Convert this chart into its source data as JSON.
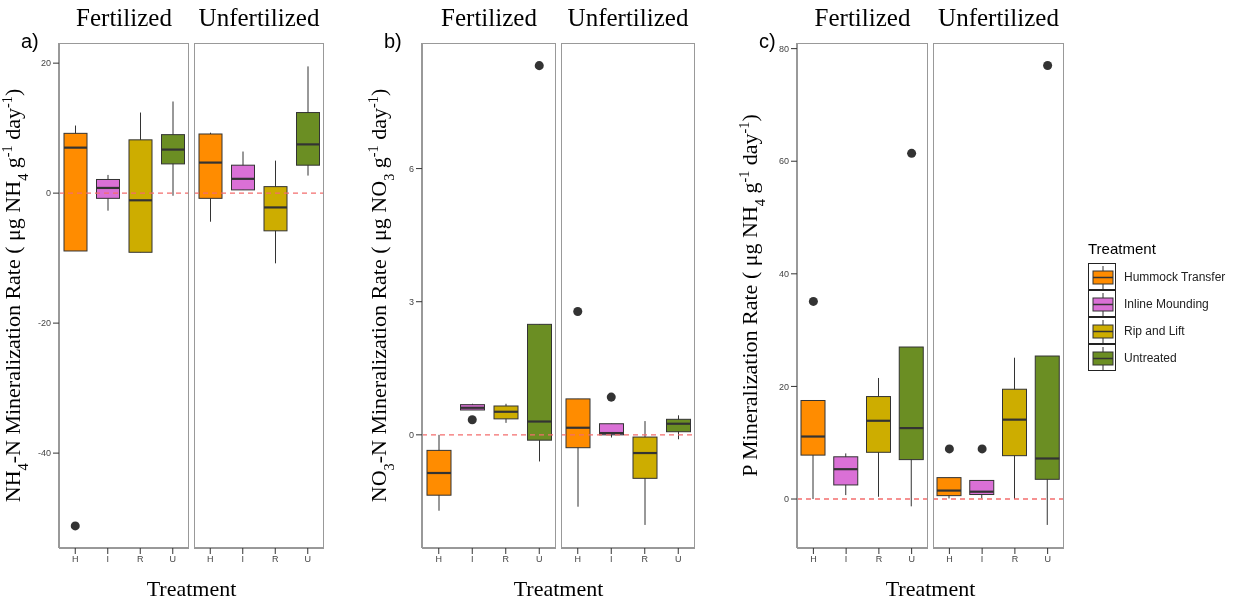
{
  "chart_data": [
    {
      "type": "box",
      "title": "Fertilized",
      "ylabel": "NH$_{4}$-N Mineralization Rate ( μg NH$_{4}$ g$^{-1}$ day$^{-1}$)",
      "xlabel": "Treatment",
      "annotations": [
        "a)"
      ],
      "categories": [
        "H",
        "I",
        "R",
        "U"
      ],
      "ylim": [
        -54.6,
        23.1
      ],
      "yticks": [
        -40,
        -20,
        0,
        20
      ],
      "ref_lines": [
        {
          "axis": "y",
          "value": 0,
          "color": "#f46d6d",
          "line_style": "dashed"
        }
      ],
      "series": [
        {
          "color": "#ff8c00",
          "boxes": [
            {
              "low": -8.9,
              "q1": -8.9,
              "median": 7.0,
              "q3": 9.2,
              "high": 10.4,
              "outliers": [
                -51.2
              ]
            },
            null,
            null,
            null
          ]
        },
        {
          "color": "#da70d6",
          "boxes": [
            null,
            {
              "low": -2.7,
              "q1": -0.8,
              "median": 0.8,
              "q3": 2.1,
              "high": 2.8
            },
            null,
            null
          ]
        },
        {
          "color": "#cdad00",
          "boxes": [
            null,
            null,
            {
              "low": -9.1,
              "q1": -9.1,
              "median": -1.1,
              "q3": 8.2,
              "high": 12.4
            },
            null
          ]
        },
        {
          "color": "#6b8e23",
          "boxes": [
            null,
            null,
            null,
            {
              "low": -0.4,
              "q1": 4.5,
              "median": 6.7,
              "q3": 9.0,
              "high": 14.1
            }
          ]
        }
      ]
    },
    {
      "type": "box",
      "title": "Unfertilized",
      "tick_labels": "x",
      "categories": [
        "H",
        "I",
        "R",
        "U"
      ],
      "ylim": [
        -54.6,
        23.1
      ],
      "yticks": [
        -40,
        -20,
        0,
        20
      ],
      "ref_lines": [
        {
          "axis": "y",
          "value": 0,
          "color": "#f46d6d",
          "line_style": "dashed"
        }
      ],
      "series": [
        {
          "color": "#ff8c00",
          "boxes": [
            {
              "low": -4.4,
              "q1": -0.8,
              "median": 4.7,
              "q3": 9.1,
              "high": 9.3
            },
            null,
            null,
            null
          ]
        },
        {
          "color": "#da70d6",
          "boxes": [
            null,
            {
              "low": 0.5,
              "q1": 0.5,
              "median": 2.2,
              "q3": 4.3,
              "high": 6.4
            },
            null,
            null
          ]
        },
        {
          "color": "#cdad00",
          "boxes": [
            null,
            null,
            {
              "low": -10.8,
              "q1": -5.8,
              "median": -2.2,
              "q3": 1.0,
              "high": 5.0
            },
            null
          ]
        },
        {
          "color": "#6b8e23",
          "boxes": [
            null,
            null,
            null,
            {
              "low": 2.7,
              "q1": 4.3,
              "median": 7.5,
              "q3": 12.4,
              "high": 19.5
            }
          ]
        }
      ]
    },
    {
      "type": "box",
      "title": "Fertilized",
      "ylabel": "NO$_{3}$-N Mineralization Rate ( μg NO$_{3}$ g$^{-1}$ day$^{-1}$)",
      "xlabel": "Treatment",
      "annotations": [
        "b)"
      ],
      "categories": [
        "H",
        "I",
        "R",
        "U"
      ],
      "ylim": [
        -2.55,
        8.83
      ],
      "yticks": [
        0,
        3,
        6
      ],
      "ref_lines": [
        {
          "axis": "y",
          "value": 0,
          "color": "#f46d6d",
          "line_style": "dashed"
        }
      ],
      "series": [
        {
          "color": "#ff8c00",
          "boxes": [
            {
              "low": -1.71,
              "q1": -1.36,
              "median": -0.86,
              "q3": -0.35,
              "high": 0
            },
            null,
            null,
            null
          ]
        },
        {
          "color": "#da70d6",
          "boxes": [
            null,
            {
              "low": 0.56,
              "q1": 0.56,
              "median": 0.61,
              "q3": 0.68,
              "high": 0.7,
              "outliers": [
                0.34
              ]
            },
            null,
            null
          ]
        },
        {
          "color": "#cdad00",
          "boxes": [
            null,
            null,
            {
              "low": 0.27,
              "q1": 0.36,
              "median": 0.52,
              "q3": 0.65,
              "high": 0.7
            },
            null
          ]
        },
        {
          "color": "#6b8e23",
          "boxes": [
            null,
            null,
            null,
            {
              "low": -0.6,
              "q1": -0.12,
              "median": 0.3,
              "q3": 2.49,
              "high": 2.49,
              "outliers": [
                8.32
              ]
            }
          ]
        }
      ]
    },
    {
      "type": "box",
      "title": "Unfertilized",
      "tick_labels": "x",
      "categories": [
        "H",
        "I",
        "R",
        "U"
      ],
      "ylim": [
        -2.55,
        8.83
      ],
      "yticks": [
        0,
        3,
        6
      ],
      "ref_lines": [
        {
          "axis": "y",
          "value": 0,
          "color": "#f46d6d",
          "line_style": "dashed"
        }
      ],
      "series": [
        {
          "color": "#ff8c00",
          "boxes": [
            {
              "low": -1.62,
              "q1": -0.29,
              "median": 0.16,
              "q3": 0.81,
              "high": 0.81,
              "outliers": [
                2.78
              ]
            },
            null,
            null,
            null
          ]
        },
        {
          "color": "#da70d6",
          "boxes": [
            null,
            {
              "low": -0.06,
              "q1": 0,
              "median": 0.04,
              "q3": 0.25,
              "high": 0.25,
              "outliers": [
                0.85
              ]
            },
            null,
            null
          ]
        },
        {
          "color": "#cdad00",
          "boxes": [
            null,
            null,
            {
              "low": -2.03,
              "q1": -0.98,
              "median": -0.41,
              "q3": -0.05,
              "high": 0.31
            },
            null
          ]
        },
        {
          "color": "#6b8e23",
          "boxes": [
            null,
            null,
            null,
            {
              "low": -0.1,
              "q1": 0.07,
              "median": 0.25,
              "q3": 0.35,
              "high": 0.44
            }
          ]
        }
      ]
    },
    {
      "type": "box",
      "title": "Fertilized",
      "ylabel": "P Mineralization Rate ( μg NH$_{4}$ g$^{-1}$ day$^{-1}$)",
      "xlabel": "Treatment",
      "annotations": [
        "c)"
      ],
      "categories": [
        "H",
        "I",
        "R",
        "U"
      ],
      "ylim": [
        -8.7,
        81
      ],
      "yticks": [
        0,
        20,
        40,
        60,
        80
      ],
      "ref_lines": [
        {
          "axis": "y",
          "value": 0,
          "color": "#f46d6d",
          "line_style": "dashed"
        }
      ],
      "series": [
        {
          "color": "#ff8c00",
          "boxes": [
            {
              "low": 0,
              "q1": 7.8,
              "median": 11.1,
              "q3": 17.5,
              "high": 17.5,
              "outliers": [
                35.1
              ]
            },
            null,
            null,
            null
          ]
        },
        {
          "color": "#da70d6",
          "boxes": [
            null,
            {
              "low": 0.7,
              "q1": 2.5,
              "median": 5.3,
              "q3": 7.5,
              "high": 8.1
            },
            null,
            null
          ]
        },
        {
          "color": "#cdad00",
          "boxes": [
            null,
            null,
            {
              "low": 0.4,
              "q1": 8.3,
              "median": 13.9,
              "q3": 18.2,
              "high": 21.5
            },
            null
          ]
        },
        {
          "color": "#6b8e23",
          "boxes": [
            null,
            null,
            null,
            {
              "low": -1.3,
              "q1": 7.0,
              "median": 12.6,
              "q3": 27.0,
              "high": 27.0,
              "outliers": [
                61.4
              ]
            }
          ]
        }
      ]
    },
    {
      "type": "box",
      "title": "Unfertilized",
      "tick_labels": "x",
      "legend": "right",
      "legend_title": "Treatment",
      "categories": [
        "H",
        "I",
        "R",
        "U"
      ],
      "ylim": [
        -8.7,
        81
      ],
      "yticks": [
        0,
        20,
        40,
        60,
        80
      ],
      "ref_lines": [
        {
          "axis": "y",
          "value": 0,
          "color": "#f46d6d",
          "line_style": "dashed"
        }
      ],
      "series": [
        {
          "name": "Hummock Transfer",
          "color": "#ff8c00",
          "boxes": [
            {
              "low": 0.1,
              "q1": 0.6,
              "median": 1.5,
              "q3": 3.8,
              "high": 3.8,
              "outliers": [
                8.9
              ]
            },
            null,
            null,
            null
          ]
        },
        {
          "name": "Inline Mounding",
          "color": "#da70d6",
          "boxes": [
            null,
            {
              "low": 0.1,
              "q1": 0.8,
              "median": 1.3,
              "q3": 3.3,
              "high": 3.3,
              "outliers": [
                8.9
              ]
            },
            null,
            null
          ]
        },
        {
          "name": "Rip and Lift",
          "color": "#cdad00",
          "boxes": [
            null,
            null,
            {
              "low": 0,
              "q1": 7.7,
              "median": 14.1,
              "q3": 19.5,
              "high": 25.1
            },
            null
          ]
        },
        {
          "name": "Untreated",
          "color": "#6b8e23",
          "boxes": [
            null,
            null,
            null,
            {
              "low": -4.6,
              "q1": 3.5,
              "median": 7.2,
              "q3": 25.4,
              "high": 25.4,
              "outliers": [
                77.0
              ]
            }
          ]
        }
      ]
    }
  ]
}
